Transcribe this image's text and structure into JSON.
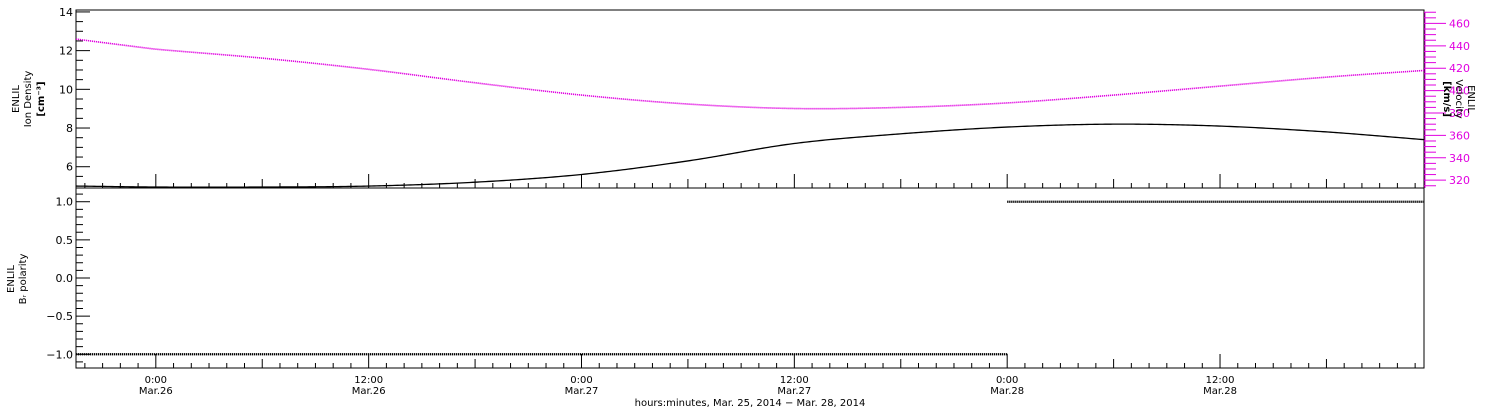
{
  "chart_data": [
    {
      "type": "line",
      "panel": "top",
      "ylabel_left": [
        "ENLIL",
        "Ion Density",
        "[cm⁻³]"
      ],
      "ylabel_right": [
        "ENLIL",
        "Velocity",
        "[km/s]"
      ],
      "left_axis": {
        "ylim": [
          4.9,
          14.1
        ],
        "ticks": [
          6,
          8,
          10,
          12,
          14
        ],
        "tick_labels": [
          "6",
          "8",
          "10",
          "12",
          "14"
        ]
      },
      "right_axis": {
        "ylim": [
          313,
          472
        ],
        "ticks": [
          320,
          340,
          360,
          380,
          400,
          420,
          440,
          460
        ],
        "tick_labels": [
          "320",
          "340",
          "360",
          "380",
          "400",
          "420",
          "440",
          "460"
        ],
        "color": "#e000e0"
      },
      "series": [
        {
          "axis": "right",
          "color": "#e000e0",
          "x": [
            -4.5,
            0,
            6,
            12,
            18,
            24,
            30,
            36,
            42,
            48,
            54,
            60,
            66,
            71.5
          ],
          "values": [
            446,
            437,
            429,
            419,
            407,
            396,
            388,
            384,
            385,
            389,
            396,
            404,
            412,
            418
          ]
        },
        {
          "axis": "left",
          "color": "#000000",
          "x": [
            -4.5,
            0,
            6,
            12,
            18,
            24,
            30,
            36,
            42,
            48,
            54,
            60,
            66,
            71.5
          ],
          "values": [
            5.0,
            4.95,
            4.95,
            5.0,
            5.2,
            5.6,
            6.3,
            7.2,
            7.7,
            8.05,
            8.2,
            8.1,
            7.8,
            7.4
          ]
        }
      ],
      "grid": false
    },
    {
      "type": "line",
      "panel": "bottom",
      "ylabel": [
        "ENLIL",
        "Bᵣ polarity"
      ],
      "ylim": [
        -1.18,
        1.18
      ],
      "ticks": [
        -1.0,
        -0.5,
        0.0,
        0.5,
        1.0
      ],
      "tick_labels": [
        "−1.0",
        "−0.5",
        "0.0",
        "0.5",
        "1.0"
      ],
      "series": [
        {
          "color": "#000000",
          "x": [
            -4.5,
            48
          ],
          "values": [
            -1.0,
            -1.0
          ]
        },
        {
          "color": "#000000",
          "x": [
            48,
            71.5
          ],
          "values": [
            1.0,
            1.0
          ]
        }
      ],
      "grid": false
    }
  ],
  "x_axis": {
    "xlim_hours": [
      -4.5,
      71.5
    ],
    "ticks_hours": [
      0,
      12,
      24,
      36,
      48,
      60
    ],
    "tick_time_labels": [
      "0:00",
      "12:00",
      "0:00",
      "12:00",
      "0:00",
      "12:00"
    ],
    "tick_date_labels": [
      "Mar.26",
      "Mar.26",
      "Mar.27",
      "Mar.27",
      "Mar.28",
      "Mar.28"
    ],
    "title": "hours:minutes, Mar. 25, 2014 − Mar. 28, 2014"
  }
}
